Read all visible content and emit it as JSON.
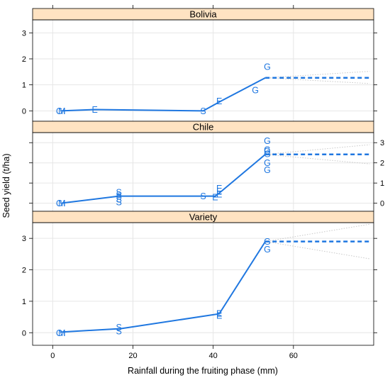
{
  "chart_data": {
    "type": "line",
    "xlabel": "Rainfall during the fruiting phase (mm)",
    "ylabel": "Seed yield (t/ha)",
    "xlim": [
      -5,
      80
    ],
    "ylim": [
      -0.4,
      3.5
    ],
    "x_ticks": [
      0,
      20,
      40,
      60
    ],
    "y_ticks": [
      0,
      1,
      2,
      3
    ],
    "grid": true,
    "line_color": "#1f77e0",
    "ci_color": "#c8c8c8",
    "strip_color": "#ffe3c2",
    "panels": [
      {
        "name": "Bolivia",
        "y_axis_side": "left",
        "line": [
          [
            2,
            0.0
          ],
          [
            10.5,
            0.05
          ],
          [
            37.5,
            0.0
          ],
          [
            42,
            0.38
          ],
          [
            53,
            1.27
          ]
        ],
        "projection": {
          "x0": 53,
          "x1": 79,
          "y": 1.27,
          "lower_end": 1.05,
          "upper_end": 1.52
        },
        "points": [
          {
            "label": "C",
            "x": 1.6,
            "y": 0.0
          },
          {
            "label": "M",
            "x": 2.3,
            "y": 0.0
          },
          {
            "label": "I",
            "x": 2.9,
            "y": 0.0
          },
          {
            "label": "E",
            "x": 10.5,
            "y": 0.05
          },
          {
            "label": "S",
            "x": 37.5,
            "y": 0.0
          },
          {
            "label": "E",
            "x": 41.5,
            "y": 0.38
          },
          {
            "label": "G",
            "x": 50.5,
            "y": 0.8
          },
          {
            "label": "G",
            "x": 53.5,
            "y": 1.7
          }
        ]
      },
      {
        "name": "Chile",
        "y_axis_side": "right",
        "line": [
          [
            2,
            0.0
          ],
          [
            16.5,
            0.35
          ],
          [
            40.5,
            0.35
          ],
          [
            41.5,
            0.5
          ],
          [
            53,
            2.42
          ]
        ],
        "projection": {
          "x0": 53,
          "x1": 79,
          "y": 2.42,
          "lower_end": 1.95,
          "upper_end": 2.9
        },
        "points": [
          {
            "label": "C",
            "x": 1.6,
            "y": 0.0
          },
          {
            "label": "M",
            "x": 2.3,
            "y": 0.0
          },
          {
            "label": "I",
            "x": 2.9,
            "y": 0.0
          },
          {
            "label": "S",
            "x": 16.5,
            "y": 0.05
          },
          {
            "label": "S",
            "x": 16.5,
            "y": 0.2
          },
          {
            "label": "S",
            "x": 16.5,
            "y": 0.33
          },
          {
            "label": "S",
            "x": 16.5,
            "y": 0.42
          },
          {
            "label": "S",
            "x": 16.5,
            "y": 0.55
          },
          {
            "label": "S",
            "x": 37.5,
            "y": 0.35
          },
          {
            "label": "E",
            "x": 40.5,
            "y": 0.3
          },
          {
            "label": "E",
            "x": 41.5,
            "y": 0.45
          },
          {
            "label": "E",
            "x": 41.5,
            "y": 0.6
          },
          {
            "label": "E",
            "x": 41.5,
            "y": 0.75
          },
          {
            "label": "G",
            "x": 53.5,
            "y": 1.65
          },
          {
            "label": "G",
            "x": 53.5,
            "y": 2.0
          },
          {
            "label": "G",
            "x": 53.5,
            "y": 2.45
          },
          {
            "label": "G",
            "x": 53.5,
            "y": 2.58
          },
          {
            "label": "G",
            "x": 53.5,
            "y": 2.65
          },
          {
            "label": "G",
            "x": 53.5,
            "y": 3.1
          }
        ]
      },
      {
        "name": "Variety",
        "y_axis_side": "left",
        "line": [
          [
            2,
            0.02
          ],
          [
            17,
            0.13
          ],
          [
            41.5,
            0.6
          ],
          [
            53,
            2.9
          ]
        ],
        "projection": {
          "x0": 53,
          "x1": 79,
          "y": 2.9,
          "lower_end": 2.35,
          "upper_end": 3.45
        },
        "points": [
          {
            "label": "C",
            "x": 1.6,
            "y": 0.0
          },
          {
            "label": "M",
            "x": 2.3,
            "y": 0.0
          },
          {
            "label": "I",
            "x": 2.9,
            "y": 0.0
          },
          {
            "label": "S",
            "x": 16.5,
            "y": 0.05
          },
          {
            "label": "S",
            "x": 16.5,
            "y": 0.18
          },
          {
            "label": "E",
            "x": 41.5,
            "y": 0.55
          },
          {
            "label": "E",
            "x": 41.5,
            "y": 0.62
          },
          {
            "label": "G",
            "x": 53.5,
            "y": 2.65
          },
          {
            "label": "G",
            "x": 53.5,
            "y": 2.9
          }
        ]
      }
    ]
  }
}
